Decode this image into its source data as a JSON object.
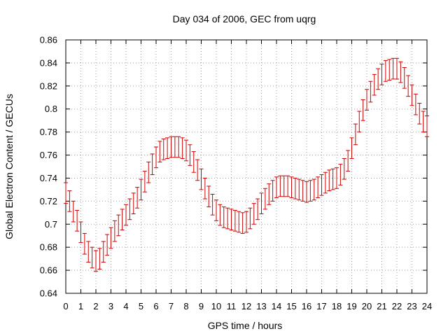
{
  "chart_data": {
    "type": "scatter",
    "title": "Day 034 of 2006, GEC from uqrg",
    "xlabel": "GPS time / hours",
    "ylabel": "Global Electron Content / GECUs",
    "xlim": [
      0,
      24
    ],
    "ylim": [
      0.64,
      0.86
    ],
    "grid": true,
    "x_ticks": [
      0,
      1,
      2,
      3,
      4,
      5,
      6,
      7,
      8,
      9,
      10,
      11,
      12,
      13,
      14,
      15,
      16,
      17,
      18,
      19,
      20,
      21,
      22,
      23,
      24
    ],
    "y_ticks": [
      0.64,
      0.66,
      0.68,
      0.7,
      0.72,
      0.74,
      0.76,
      0.78,
      0.8,
      0.82,
      0.84,
      0.86
    ],
    "y_tick_labels": [
      "0.64",
      "0.66",
      "0.68",
      "0.7",
      "0.72",
      "0.74",
      "0.76",
      "0.78",
      "0.8",
      "0.82",
      "0.84",
      "0.86"
    ],
    "error": 0.009,
    "color": "#cc0000",
    "series": [
      {
        "name": "GEC",
        "x": [
          0,
          0.25,
          0.5,
          0.75,
          1,
          1.25,
          1.5,
          1.75,
          2,
          2.25,
          2.5,
          2.75,
          3,
          3.25,
          3.5,
          3.75,
          4,
          4.25,
          4.5,
          4.75,
          5,
          5.25,
          5.5,
          5.75,
          6,
          6.25,
          6.5,
          6.75,
          7,
          7.25,
          7.5,
          7.75,
          8,
          8.25,
          8.5,
          8.75,
          9,
          9.25,
          9.5,
          9.75,
          10,
          10.25,
          10.5,
          10.75,
          11,
          11.25,
          11.5,
          11.75,
          12,
          12.25,
          12.5,
          12.75,
          13,
          13.25,
          13.5,
          13.75,
          14,
          14.25,
          14.5,
          14.75,
          15,
          15.25,
          15.5,
          15.75,
          16,
          16.25,
          16.5,
          16.75,
          17,
          17.25,
          17.5,
          17.75,
          18,
          18.25,
          18.5,
          18.75,
          19,
          19.25,
          19.5,
          19.75,
          20,
          20.25,
          20.5,
          20.75,
          21,
          21.25,
          21.5,
          21.75,
          22,
          22.25,
          22.5,
          22.75,
          23,
          23.25,
          23.5,
          23.75,
          24
        ],
        "y": [
          0.727,
          0.72,
          0.711,
          0.703,
          0.693,
          0.683,
          0.676,
          0.671,
          0.668,
          0.67,
          0.676,
          0.682,
          0.688,
          0.694,
          0.699,
          0.704,
          0.708,
          0.713,
          0.718,
          0.723,
          0.73,
          0.737,
          0.745,
          0.752,
          0.758,
          0.763,
          0.765,
          0.766,
          0.767,
          0.767,
          0.767,
          0.766,
          0.764,
          0.76,
          0.754,
          0.747,
          0.739,
          0.731,
          0.724,
          0.717,
          0.712,
          0.708,
          0.706,
          0.705,
          0.704,
          0.703,
          0.702,
          0.701,
          0.702,
          0.705,
          0.709,
          0.713,
          0.718,
          0.722,
          0.726,
          0.729,
          0.732,
          0.733,
          0.733,
          0.733,
          0.732,
          0.731,
          0.73,
          0.729,
          0.728,
          0.729,
          0.73,
          0.732,
          0.734,
          0.736,
          0.738,
          0.739,
          0.74,
          0.743,
          0.748,
          0.755,
          0.766,
          0.778,
          0.789,
          0.799,
          0.808,
          0.815,
          0.821,
          0.826,
          0.83,
          0.833,
          0.834,
          0.835,
          0.835,
          0.832,
          0.827,
          0.82,
          0.812,
          0.804,
          0.796,
          0.789,
          0.785
        ]
      }
    ]
  }
}
